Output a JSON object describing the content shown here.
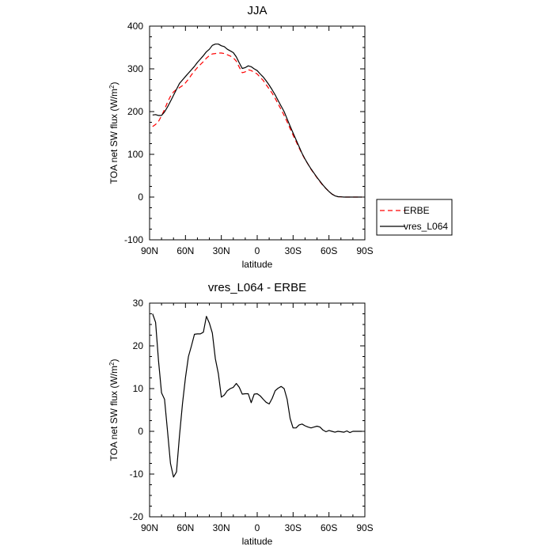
{
  "chart_data": [
    {
      "type": "line",
      "title": "JJA",
      "xlabel": "latitude",
      "ylabel": "TOA net SW flux (W/m²)",
      "ylabel_main": "TOA net SW flux (W/m",
      "ylabel_sup": "2",
      "ylabel_close": ")",
      "xlim": [
        90,
        -90
      ],
      "ylim": [
        -100,
        400
      ],
      "xticks": [
        90,
        60,
        30,
        0,
        -30,
        -60,
        -90
      ],
      "xtick_labels": [
        "90N",
        "60N",
        "30N",
        "0",
        "30S",
        "60S",
        "90S"
      ],
      "yticks": [
        -100,
        0,
        100,
        200,
        300,
        400
      ],
      "ytick_labels": [
        "-100",
        "0",
        "100",
        "200",
        "300",
        "400"
      ],
      "legend_position": "outside-right",
      "series": [
        {
          "name": "ERBE",
          "color": "#ff0000",
          "dash": "dashed",
          "x": [
            87.5,
            85,
            82.5,
            80,
            77.5,
            75,
            72.5,
            70,
            67.5,
            65,
            62.5,
            60,
            57.5,
            55,
            52.5,
            50,
            47.5,
            45,
            42.5,
            40,
            37.5,
            35,
            32.5,
            30,
            27.5,
            25,
            22.5,
            20,
            17.5,
            15,
            12.5,
            10,
            7.5,
            5,
            2.5,
            0,
            -2.5,
            -5,
            -7.5,
            -10,
            -12.5,
            -15,
            -17.5,
            -20,
            -22.5,
            -25,
            -27.5,
            -30,
            -32.5,
            -35,
            -37.5,
            -40,
            -42.5,
            -45,
            -47.5,
            -50,
            -52.5,
            -55,
            -57.5,
            -60,
            -62.5,
            -65,
            -67.5,
            -70,
            -72.5,
            -75,
            -77.5,
            -80,
            -82.5,
            -85,
            -87.5
          ],
          "y": [
            165,
            170,
            177,
            190,
            205,
            222,
            236,
            246,
            252,
            256,
            261,
            267,
            276,
            286,
            295,
            303,
            310,
            317,
            325,
            331,
            335,
            336,
            337,
            337,
            336,
            333,
            330,
            326,
            318,
            304,
            291,
            293,
            298,
            296,
            292,
            288,
            280,
            273,
            263,
            253,
            243,
            231,
            218,
            205,
            191,
            176,
            160,
            145,
            130,
            115,
            101,
            88,
            77,
            65,
            55,
            45,
            36,
            27,
            20,
            13,
            7,
            3,
            1,
            0.5,
            0,
            0,
            0,
            0,
            0,
            0,
            0
          ]
        },
        {
          "name": "vres_L064",
          "color": "#000000",
          "dash": "solid",
          "x": [
            87.5,
            85,
            82.5,
            80,
            77.5,
            75,
            72.5,
            70,
            67.5,
            65,
            62.5,
            60,
            57.5,
            55,
            52.5,
            50,
            47.5,
            45,
            42.5,
            40,
            37.5,
            35,
            32.5,
            30,
            27.5,
            25,
            22.5,
            20,
            17.5,
            15,
            12.5,
            10,
            7.5,
            5,
            2.5,
            0,
            -2.5,
            -5,
            -7.5,
            -10,
            -12.5,
            -15,
            -17.5,
            -20,
            -22.5,
            -25,
            -27.5,
            -30,
            -32.5,
            -35,
            -37.5,
            -40,
            -42.5,
            -45,
            -47.5,
            -50,
            -52.5,
            -55,
            -57.5,
            -60,
            -62.5,
            -65,
            -67.5,
            -70,
            -72.5,
            -75,
            -77.5,
            -80,
            -82.5,
            -85,
            -87.5
          ],
          "y": [
            192,
            193,
            191,
            191,
            199,
            211,
            224,
            238,
            252,
            266,
            274,
            282,
            290,
            298,
            306,
            315,
            323,
            331,
            340,
            346,
            355,
            358,
            358,
            354,
            352,
            346,
            342,
            338,
            328,
            314,
            301,
            303,
            307,
            305,
            300,
            296,
            288,
            281,
            272,
            262,
            251,
            239,
            226,
            213,
            200,
            183,
            166,
            150,
            134,
            118,
            102,
            89,
            77,
            66,
            56,
            46,
            37,
            28,
            20,
            13,
            7,
            3,
            1,
            0.5,
            0,
            0,
            0,
            0,
            0,
            0,
            0
          ]
        }
      ]
    },
    {
      "type": "line",
      "title": "vres_L064 - ERBE",
      "xlabel": "latitude",
      "ylabel": "TOA net SW flux (W/m²)",
      "ylabel_main": "TOA net SW flux (W/m",
      "ylabel_sup": "2",
      "ylabel_close": ")",
      "xlim": [
        90,
        -90
      ],
      "ylim": [
        -20,
        30
      ],
      "xticks": [
        90,
        60,
        30,
        0,
        -30,
        -60,
        -90
      ],
      "xtick_labels": [
        "90N",
        "60N",
        "30N",
        "0",
        "30S",
        "60S",
        "90S"
      ],
      "yticks": [
        -20,
        -10,
        0,
        10,
        20,
        30
      ],
      "ytick_labels": [
        "-20",
        "-10",
        "0",
        "10",
        "20",
        "30"
      ],
      "series": [
        {
          "color": "#000000",
          "dash": "solid",
          "x": [
            87.5,
            85,
            82.5,
            80,
            77.5,
            75,
            72.5,
            70,
            67.5,
            65,
            62.5,
            60,
            57.5,
            55,
            52.5,
            50,
            47.5,
            45,
            42.5,
            40,
            37.5,
            35,
            32.5,
            30,
            27.5,
            25,
            22.5,
            20,
            17.5,
            15,
            12.5,
            10,
            7.5,
            5,
            2.5,
            0,
            -2.5,
            -5,
            -7.5,
            -10,
            -12.5,
            -15,
            -17.5,
            -20,
            -22.5,
            -25,
            -27.5,
            -30,
            -32.5,
            -35,
            -37.5,
            -40,
            -42.5,
            -45,
            -47.5,
            -50,
            -52.5,
            -55,
            -57.5,
            -60,
            -62.5,
            -65,
            -67.5,
            -70,
            -72.5,
            -75,
            -77.5,
            -80,
            -82.5,
            -85,
            -87.5
          ],
          "y": [
            27.5,
            25.5,
            16.5,
            9,
            7.5,
            0,
            -7.5,
            -10.7,
            -9.5,
            -1,
            6.5,
            12.5,
            17.5,
            20,
            22.7,
            22.8,
            22.8,
            23.2,
            26.9,
            25.3,
            23,
            17,
            13.5,
            8,
            8.5,
            9.5,
            10,
            10.3,
            11.2,
            10.3,
            8.7,
            8.8,
            8.8,
            6.7,
            8.7,
            8.8,
            8.3,
            7.5,
            6.8,
            6.4,
            7.7,
            9.5,
            10.1,
            10.5,
            10,
            7.5,
            3,
            0.8,
            0.8,
            1.5,
            1.7,
            1.3,
            1,
            0.8,
            1,
            1.2,
            1,
            0.3,
            -0.1,
            0.2,
            0,
            -0.2,
            0,
            -0.1,
            -0.2,
            0.1,
            -0.3,
            0,
            0,
            0,
            0
          ]
        }
      ]
    }
  ]
}
